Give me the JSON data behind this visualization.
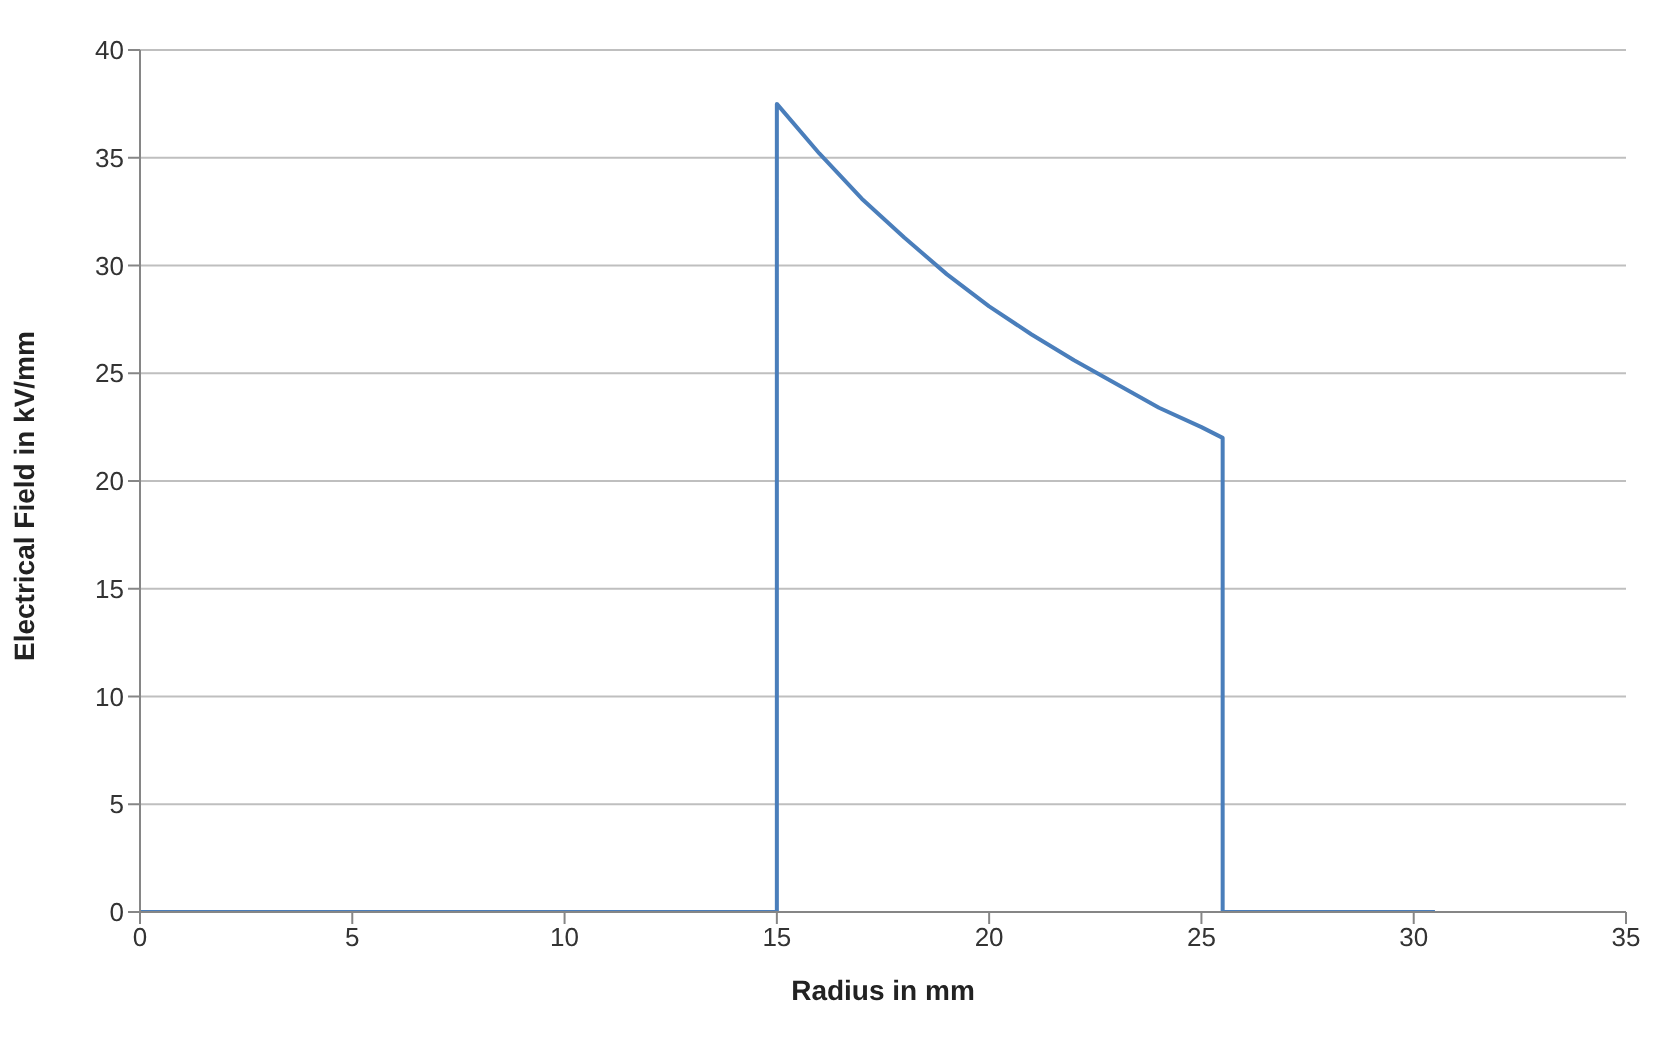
{
  "chart_data": {
    "type": "line",
    "xlabel": "Radius in mm",
    "ylabel": "Electrical Field in kV/mm",
    "x": [
      0,
      15,
      15,
      16,
      17,
      18,
      19,
      20,
      21,
      22,
      23,
      24,
      25,
      25.5,
      25.5,
      30.5
    ],
    "series": [
      {
        "color": "#4a7ebb",
        "values": [
          0,
          0,
          37.5,
          35.2,
          33.1,
          31.3,
          29.6,
          28.1,
          26.8,
          25.6,
          24.5,
          23.4,
          22.5,
          22,
          0,
          0
        ]
      }
    ],
    "xlim": [
      0,
      35
    ],
    "xticks": [
      0,
      5,
      10,
      15,
      20,
      25,
      30,
      35
    ],
    "ylim": [
      0,
      40
    ],
    "yticks": [
      0,
      5,
      10,
      15,
      20,
      25,
      30,
      35,
      40
    ],
    "grid": "y",
    "marker": "none",
    "line_style": "solid"
  }
}
